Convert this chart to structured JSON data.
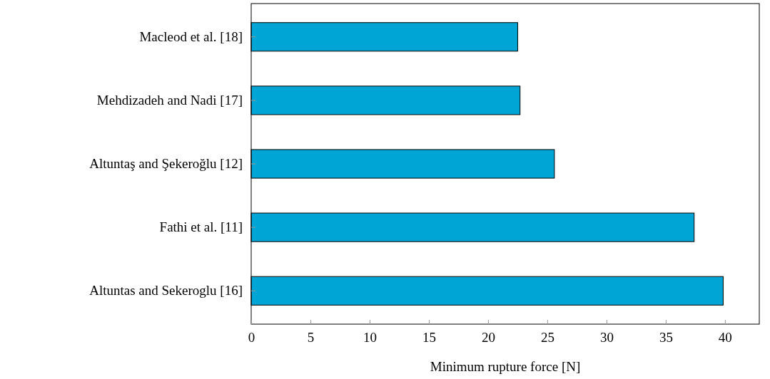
{
  "chart_data": {
    "type": "bar",
    "orientation": "horizontal",
    "xlabel": "Minimum rupture force [N]",
    "categories": [
      "Macleod et al. [18]",
      "Mehdizadeh and Nadi [17]",
      "Altuntaş and Şekeroğlu [12]",
      "Fathi et al. [11]",
      "Altuntas and Sekeroglu [16]"
    ],
    "values": [
      22.5,
      22.7,
      25.6,
      37.4,
      39.85
    ],
    "color": "#00a5d6",
    "xlim": [
      0,
      42.9
    ],
    "xticks": [
      0,
      5,
      10,
      15,
      20,
      25,
      30,
      35,
      40
    ]
  }
}
